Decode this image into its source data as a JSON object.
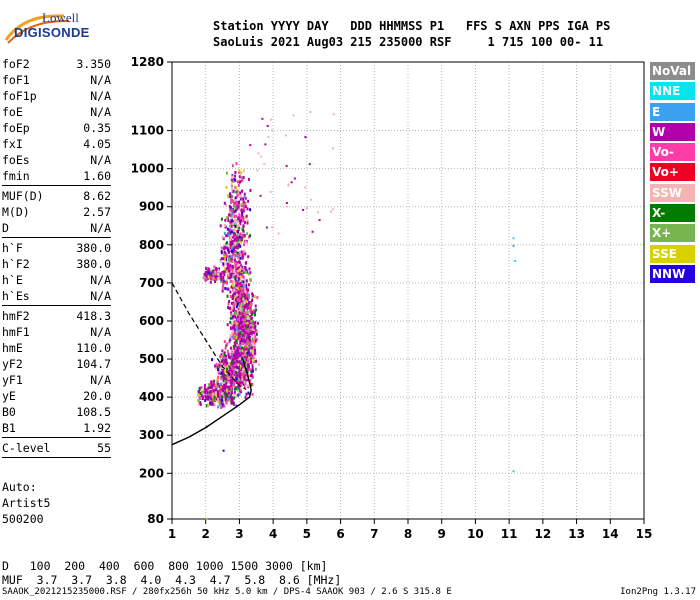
{
  "logo": {
    "top": "Lowell",
    "bottom": "DIGISONDE"
  },
  "header": {
    "line1": "Station YYYY DAY   DDD HHMMSS P1   FFS S AXN PPS IGA PS",
    "line2": "SaoLuis 2021 Aug03 215 235000 RSF     1 715 100 00- 11"
  },
  "params": {
    "group1": [
      {
        "label": "foF2",
        "value": "3.350"
      },
      {
        "label": "foF1",
        "value": "N/A"
      },
      {
        "label": "foF1p",
        "value": "N/A"
      },
      {
        "label": "foE",
        "value": "N/A"
      },
      {
        "label": "foEp",
        "value": "0.35"
      },
      {
        "label": "fxI",
        "value": "4.05"
      },
      {
        "label": "foEs",
        "value": "N/A"
      },
      {
        "label": "fmin",
        "value": "1.60"
      }
    ],
    "group2": [
      {
        "label": "MUF(D)",
        "value": "8.62"
      },
      {
        "label": "M(D)",
        "value": "2.57"
      },
      {
        "label": "D",
        "value": "N/A"
      }
    ],
    "group3": [
      {
        "label": "h`F",
        "value": "380.0"
      },
      {
        "label": "h`F2",
        "value": "380.0"
      },
      {
        "label": "h`E",
        "value": "N/A"
      },
      {
        "label": "h`Es",
        "value": "N/A"
      }
    ],
    "group4": [
      {
        "label": "hmF2",
        "value": "418.3"
      },
      {
        "label": "hmF1",
        "value": "N/A"
      },
      {
        "label": "hmE",
        "value": "110.0"
      },
      {
        "label": "yF2",
        "value": "104.7"
      },
      {
        "label": "yF1",
        "value": "N/A"
      },
      {
        "label": "yE",
        "value": "20.0"
      },
      {
        "label": "B0",
        "value": "108.5"
      },
      {
        "label": "B1",
        "value": "1.92"
      }
    ],
    "group5": [
      {
        "label": "C-level",
        "value": "55"
      }
    ]
  },
  "auto": {
    "line1": "Auto:",
    "line2": "Artist5",
    "line3": "500200"
  },
  "legend": [
    {
      "label": "NoVal",
      "color": "#8c8c8c"
    },
    {
      "label": "NNE",
      "color": "#00e5ee"
    },
    {
      "label": "E",
      "color": "#3ca0f0"
    },
    {
      "label": "W",
      "color": "#b000a8"
    },
    {
      "label": "Vo-",
      "color": "#ff3caa"
    },
    {
      "label": "Vo+",
      "color": "#ee0022"
    },
    {
      "label": "SSW",
      "color": "#f4b4b4"
    },
    {
      "label": "X-",
      "color": "#007a00"
    },
    {
      "label": "X+",
      "color": "#78b450"
    },
    {
      "label": "SSE",
      "color": "#d8d000"
    },
    {
      "label": "NNW",
      "color": "#2200e0"
    }
  ],
  "muf_table": {
    "d_label": "D",
    "d_values": "100  200  400  600  800 1000 1500 3000 [km]",
    "muf_label": "MUF",
    "muf_values": "3.7  3.7  3.8  4.0  4.3  4.7  5.8  8.6 [MHz]"
  },
  "footer": {
    "left": "SAAOK_2021215235000.RSF / 280fx256h 50 kHz 5.0 km / DPS-4 SAAOK 903 / 2.6 S 315.8 E",
    "right": "Ion2Png 1.3.17"
  },
  "chart_data": {
    "type": "scatter",
    "xlim": [
      1,
      15
    ],
    "ylim": [
      80,
      1280
    ],
    "x_ticks": [
      "1",
      "2",
      "3",
      "4",
      "5",
      "6",
      "7",
      "8",
      "9",
      "10",
      "11",
      "12",
      "13",
      "14",
      "15"
    ],
    "y_ticks": [
      "80",
      "200",
      "300",
      "400",
      "500",
      "600",
      "700",
      "800",
      "900",
      "1000",
      "1100",
      "1280"
    ],
    "grid": true,
    "xlabel": "",
    "ylabel": "",
    "profile_curve": [
      [
        1,
        275
      ],
      [
        1.5,
        295
      ],
      [
        2,
        320
      ],
      [
        2.5,
        350
      ],
      [
        3,
        380
      ],
      [
        3.3,
        400
      ],
      [
        3.35,
        418
      ],
      [
        3.3,
        440
      ],
      [
        3.2,
        470
      ],
      [
        3.1,
        500
      ]
    ],
    "dashed_curve": [
      [
        1,
        700
      ],
      [
        1.5,
        620
      ],
      [
        2,
        550
      ],
      [
        2.5,
        480
      ],
      [
        3,
        430
      ],
      [
        3.2,
        420
      ]
    ]
  }
}
